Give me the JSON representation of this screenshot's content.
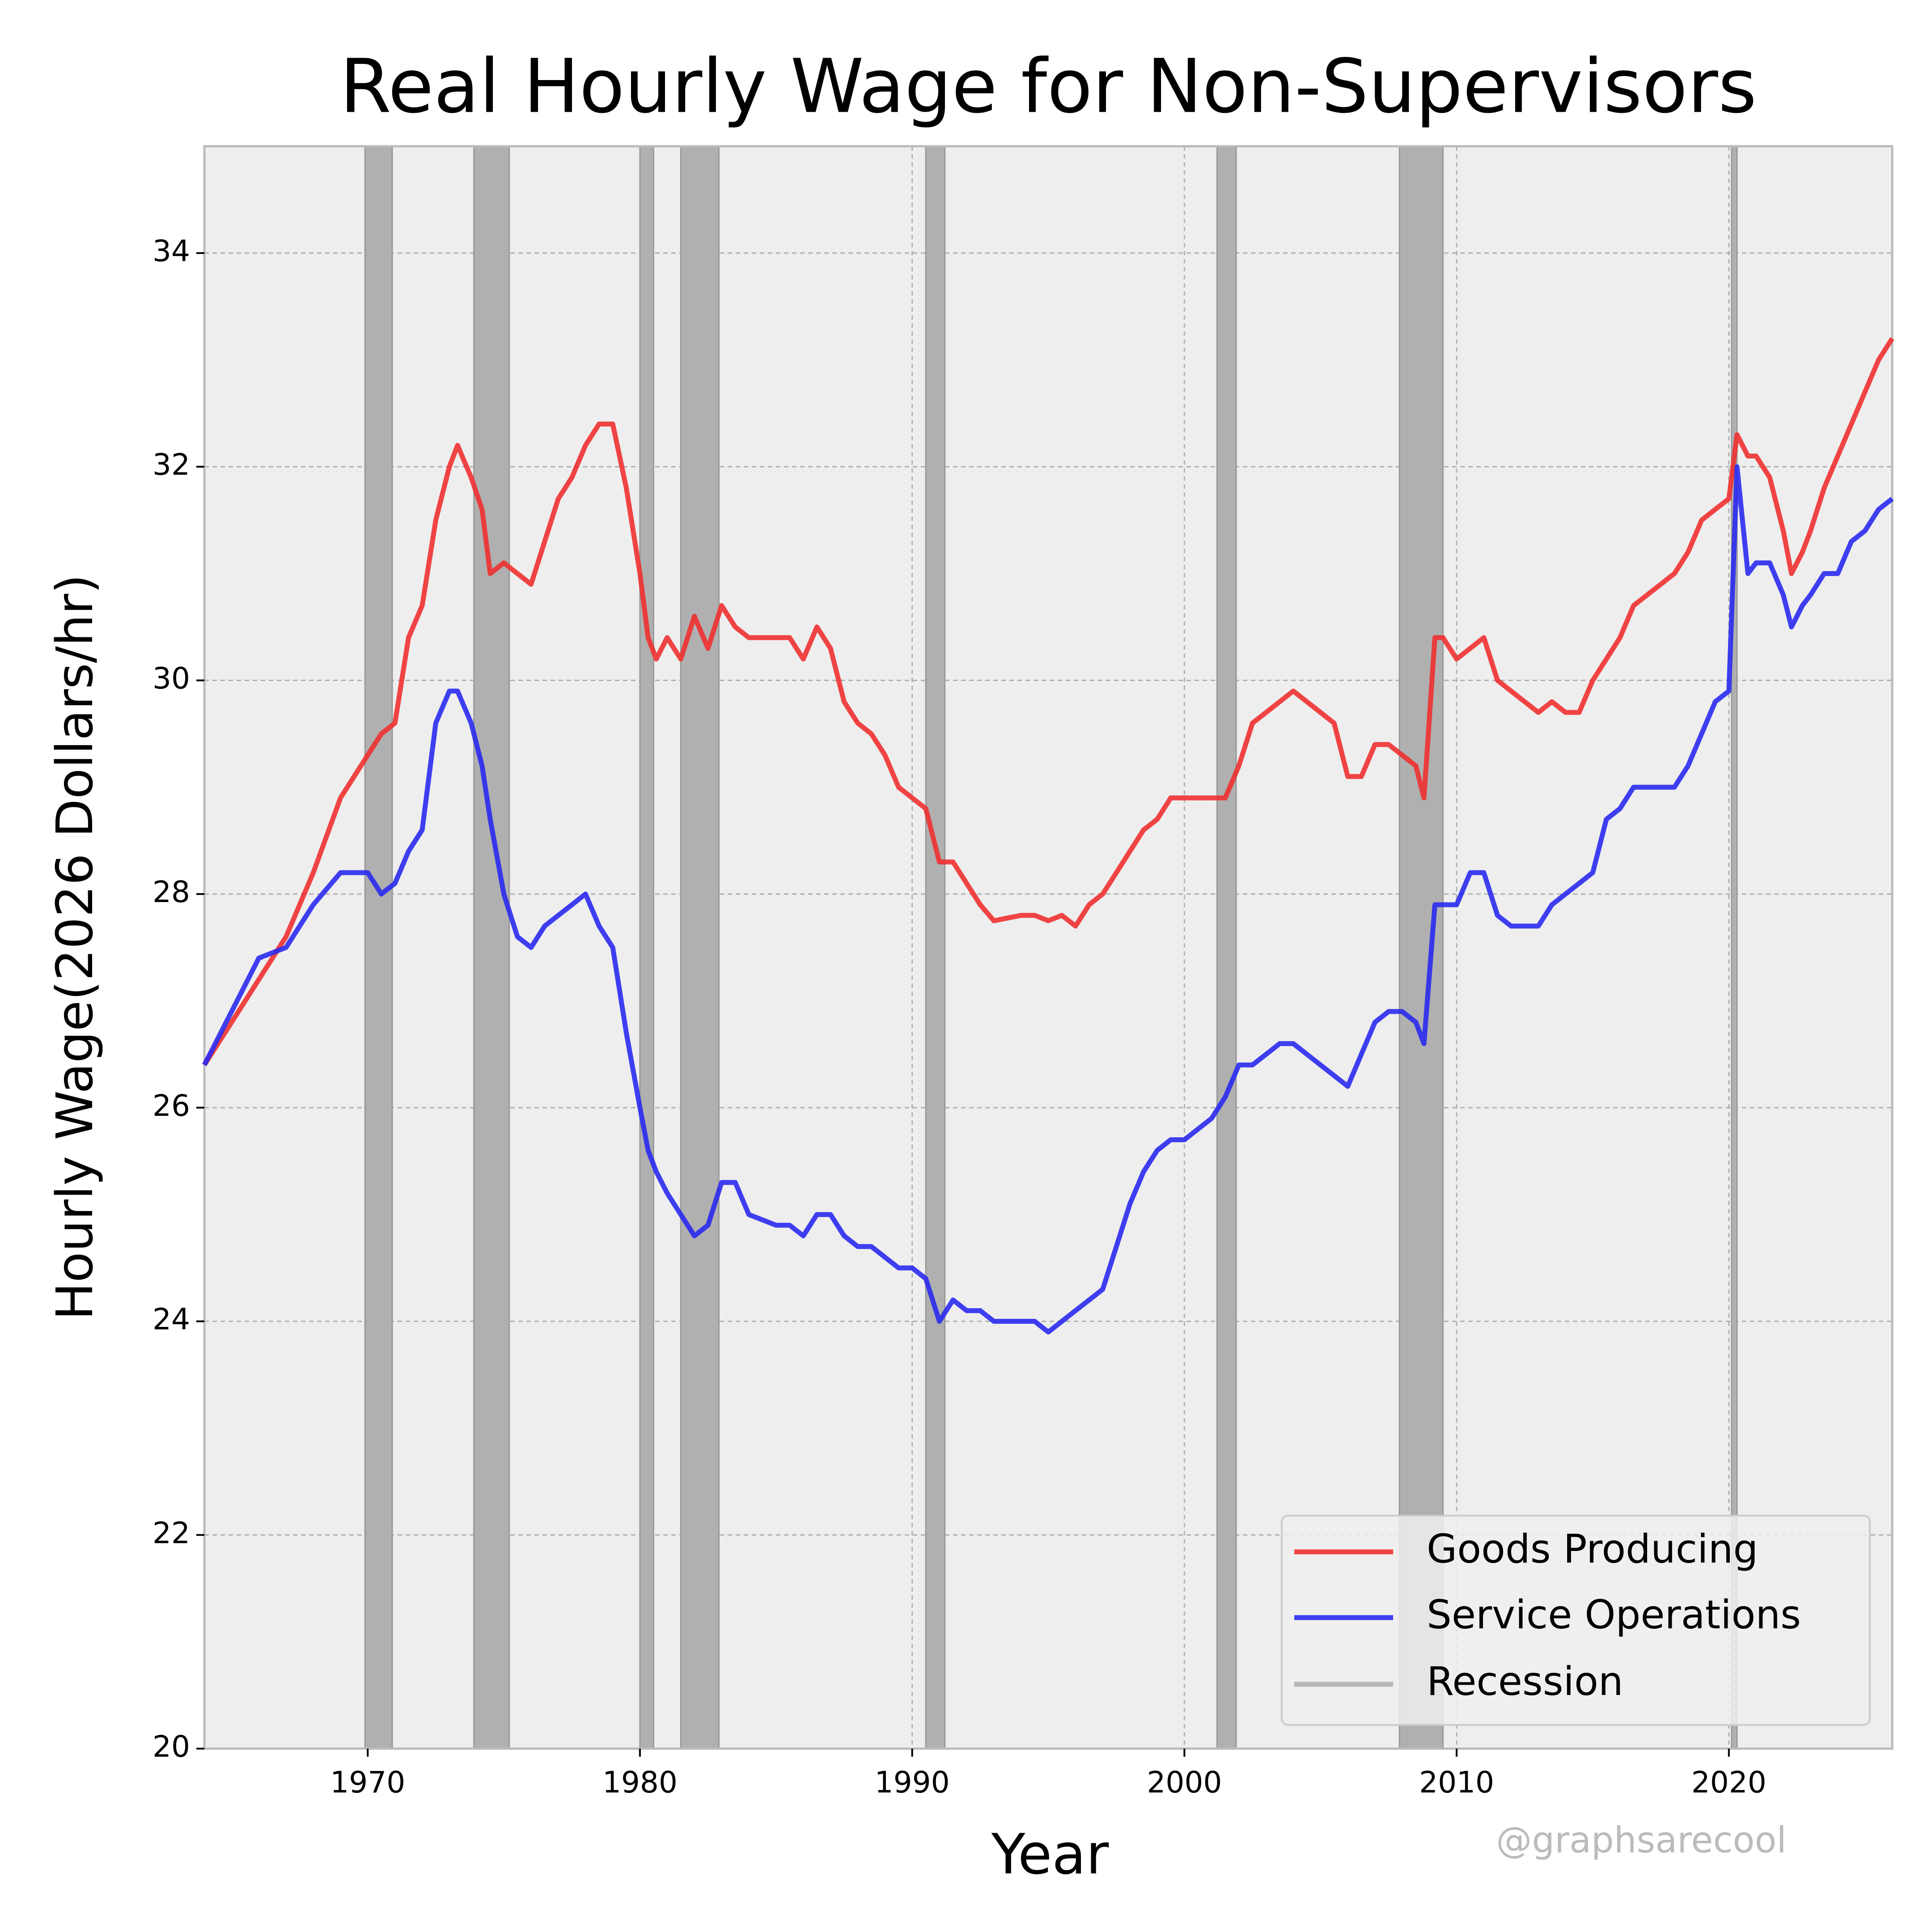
{
  "chart_data": {
    "type": "line",
    "title": "Real Hourly Wage for Non-Supervisors",
    "xlabel": "Year",
    "ylabel": "Hourly Wage(2026 Dollars/hr)",
    "watermark": "@graphsarecool",
    "xlim": [
      1964,
      2026
    ],
    "ylim": [
      20,
      35
    ],
    "xticks": [
      1970,
      1980,
      1990,
      2000,
      2010,
      2020
    ],
    "yticks": [
      20,
      22,
      24,
      26,
      28,
      30,
      32,
      34
    ],
    "grid": true,
    "legend": "lower right",
    "x": [
      1964,
      1965,
      1966,
      1967,
      1968,
      1969,
      1970,
      1970.5,
      1971,
      1971.5,
      1972,
      1972.5,
      1973,
      1973.3,
      1973.8,
      1974.2,
      1974.5,
      1975,
      1975.5,
      1976,
      1976.5,
      1977,
      1977.5,
      1978,
      1978.5,
      1979,
      1979.5,
      1980,
      1980.3,
      1980.6,
      1981,
      1981.5,
      1982,
      1982.5,
      1983,
      1983.5,
      1984,
      1985,
      1985.5,
      1986,
      1986.5,
      1987,
      1987.5,
      1988,
      1988.5,
      1989,
      1989.5,
      1990,
      1990.5,
      1991,
      1991.5,
      1992,
      1992.5,
      1993,
      1994,
      1994.5,
      1995,
      1995.5,
      1996,
      1996.5,
      1997,
      1997.5,
      1998,
      1998.5,
      1999,
      1999.5,
      2000,
      2001,
      2001.5,
      2002,
      2002.5,
      2003,
      2003.5,
      2004,
      2004.5,
      2005,
      2005.5,
      2006,
      2006.5,
      2007,
      2007.5,
      2008,
      2008.5,
      2008.8,
      2009.2,
      2009.5,
      2010,
      2010.5,
      2011,
      2011.5,
      2012,
      2012.5,
      2013,
      2013.5,
      2014,
      2014.5,
      2015,
      2015.5,
      2016,
      2016.5,
      2017,
      2017.5,
      2018,
      2018.5,
      2019,
      2019.5,
      2020,
      2020.3,
      2020.7,
      2021,
      2021.5,
      2022,
      2022.3,
      2022.7,
      2023,
      2023.5,
      2024,
      2024.5,
      2025,
      2025.5,
      2026
    ],
    "series": [
      {
        "name": "Goods Producing",
        "color": "#f03030",
        "values": [
          26.4,
          26.8,
          27.2,
          27.6,
          28.2,
          28.9,
          29.3,
          29.5,
          29.6,
          30.4,
          30.7,
          31.5,
          32.0,
          32.2,
          31.9,
          31.6,
          31.0,
          31.1,
          31.0,
          30.9,
          31.3,
          31.7,
          31.9,
          32.2,
          32.4,
          32.4,
          31.8,
          31.0,
          30.4,
          30.2,
          30.4,
          30.2,
          30.6,
          30.3,
          30.7,
          30.5,
          30.4,
          30.4,
          30.4,
          30.2,
          30.5,
          30.3,
          29.8,
          29.6,
          29.5,
          29.3,
          29.0,
          28.9,
          28.8,
          28.3,
          28.3,
          28.1,
          27.9,
          27.75,
          27.8,
          27.8,
          27.75,
          27.8,
          27.7,
          27.9,
          28.0,
          28.2,
          28.4,
          28.6,
          28.7,
          28.9,
          28.9,
          28.9,
          28.9,
          29.2,
          29.6,
          29.7,
          29.8,
          29.9,
          29.8,
          29.7,
          29.6,
          29.1,
          29.1,
          29.4,
          29.4,
          29.3,
          29.2,
          28.9,
          30.4,
          30.4,
          30.2,
          30.3,
          30.4,
          30.0,
          29.9,
          29.8,
          29.7,
          29.8,
          29.7,
          29.7,
          30.0,
          30.2,
          30.4,
          30.7,
          30.8,
          30.9,
          31.0,
          31.2,
          31.5,
          31.6,
          31.7,
          32.3,
          32.1,
          32.1,
          31.9,
          31.4,
          31.0,
          31.2,
          31.4,
          31.8,
          32.1,
          32.4,
          32.7,
          33.0,
          33.2
        ]
      },
      {
        "name": "Service Operations",
        "color": "#2a2af0",
        "values": [
          26.4,
          26.9,
          27.4,
          27.5,
          27.9,
          28.2,
          28.2,
          28.0,
          28.1,
          28.4,
          28.6,
          29.6,
          29.9,
          29.9,
          29.6,
          29.2,
          28.7,
          28.0,
          27.6,
          27.5,
          27.7,
          27.8,
          27.9,
          28.0,
          27.7,
          27.5,
          26.7,
          26.0,
          25.6,
          25.4,
          25.2,
          25.0,
          24.8,
          24.9,
          25.3,
          25.3,
          25.0,
          24.9,
          24.9,
          24.8,
          25.0,
          25.0,
          24.8,
          24.7,
          24.7,
          24.6,
          24.5,
          24.5,
          24.4,
          24.0,
          24.2,
          24.1,
          24.1,
          24.0,
          24.0,
          24.0,
          23.9,
          24.0,
          24.1,
          24.2,
          24.3,
          24.7,
          25.1,
          25.4,
          25.6,
          25.7,
          25.7,
          25.9,
          26.1,
          26.4,
          26.4,
          26.5,
          26.6,
          26.6,
          26.5,
          26.4,
          26.3,
          26.2,
          26.5,
          26.8,
          26.9,
          26.9,
          26.8,
          26.6,
          27.9,
          27.9,
          27.9,
          28.2,
          28.2,
          27.8,
          27.7,
          27.7,
          27.7,
          27.9,
          28.0,
          28.1,
          28.2,
          28.7,
          28.8,
          29.0,
          29.0,
          29.0,
          29.0,
          29.2,
          29.5,
          29.8,
          29.9,
          32.0,
          31.0,
          31.1,
          31.1,
          30.8,
          30.5,
          30.7,
          30.8,
          31.0,
          31.0,
          31.3,
          31.4,
          31.6,
          31.7
        ]
      }
    ],
    "recessions": {
      "name": "Recession",
      "color": "#b0b0b0",
      "spans": [
        [
          1969.9,
          1970.9
        ],
        [
          1973.9,
          1975.2
        ],
        [
          1980.0,
          1980.5
        ],
        [
          1981.5,
          1982.9
        ],
        [
          1990.5,
          1991.2
        ],
        [
          2001.2,
          2001.9
        ],
        [
          2007.9,
          2009.5
        ],
        [
          2020.1,
          2020.3
        ]
      ]
    }
  }
}
